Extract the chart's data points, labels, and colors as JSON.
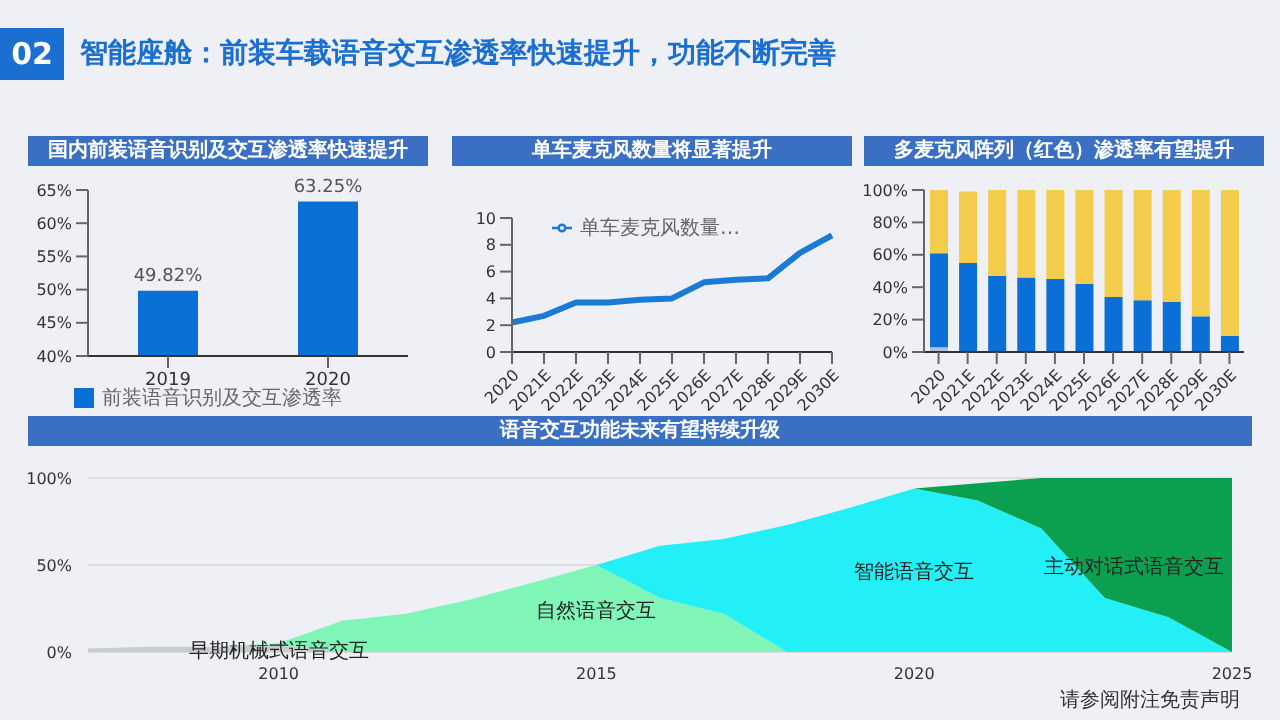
{
  "chart_data": [
    {
      "type": "bar",
      "title": "国内前装语音识别及交互渗透率快速提升",
      "annotations": [
        "02",
        "智能座舱：前装车载语音交互渗透率快速提升，功能不断完善"
      ],
      "categories": [
        "2019",
        "2020"
      ],
      "series": [
        {
          "name": "前装语音识别及交互渗透率",
          "color": "#0a6fd6",
          "values": [
            49.82,
            63.25
          ],
          "value_labels": [
            "49.82%",
            "63.25%"
          ]
        }
      ],
      "ylim": [
        40,
        65
      ],
      "yticks": [
        {
          "value": 40,
          "label": "40%"
        },
        {
          "value": 45,
          "label": "45%"
        },
        {
          "value": 50,
          "label": "50%"
        },
        {
          "value": 55,
          "label": "55%"
        },
        {
          "value": 60,
          "label": "60%"
        },
        {
          "value": 65,
          "label": "65%"
        }
      ],
      "legend": "bottom",
      "grid": false
    },
    {
      "type": "line",
      "title": "单车麦克风数量将显著提升",
      "categories": [
        "2020",
        "2021E",
        "2022E",
        "2023E",
        "2024E",
        "2025E",
        "2026E",
        "2027E",
        "2028E",
        "2029E",
        "2030E"
      ],
      "series": [
        {
          "name": "单车麦克风数量…",
          "color": "#1a7ad6",
          "values": [
            2.2,
            2.7,
            3.7,
            3.7,
            3.9,
            4.0,
            5.2,
            5.4,
            5.5,
            7.4,
            8.7
          ]
        }
      ],
      "ylim": [
        0,
        10
      ],
      "yticks": [
        0,
        2,
        4,
        6,
        8,
        10
      ],
      "legend": "top left",
      "marker": "none",
      "grid": false
    },
    {
      "type": "bar",
      "stacked": true,
      "title": "多麦克风阵列（红色）渗透率有望提升",
      "categories": [
        "2020",
        "2021E",
        "2022E",
        "2023E",
        "2024E",
        "2025E",
        "2026E",
        "2027E",
        "2028E",
        "2029E",
        "2030E"
      ],
      "series": [
        {
          "color": "#a9c3dc",
          "values": [
            3,
            null,
            0,
            0,
            0,
            0,
            0,
            0,
            0,
            0,
            0
          ]
        },
        {
          "color": "#0a6fd6",
          "values": [
            58,
            55,
            47,
            46,
            45,
            42,
            34,
            32,
            31,
            22,
            10
          ]
        },
        {
          "color": "#f2cc4a",
          "values": [
            39,
            44,
            53,
            54,
            55,
            58,
            66,
            68,
            69,
            78,
            90
          ]
        }
      ],
      "ylim": [
        0,
        100
      ],
      "yticks": [
        {
          "value": 0,
          "label": "0%"
        },
        {
          "value": 20,
          "label": "20%"
        },
        {
          "value": 40,
          "label": "40%"
        },
        {
          "value": 60,
          "label": "60%"
        },
        {
          "value": 80,
          "label": "80%"
        },
        {
          "value": 100,
          "label": "100%"
        }
      ],
      "grid": false
    },
    {
      "type": "area",
      "stacked": true,
      "title": "语音交互功能未来有望持续升级",
      "x": [
        2007,
        2008,
        2009,
        2010,
        2011,
        2012,
        2013,
        2014,
        2015,
        2016,
        2017,
        2018,
        2019,
        2020,
        2021,
        2022,
        2023,
        2024,
        2025
      ],
      "series": [
        {
          "name": "早期机械式语音交互",
          "color": "#c8cccc",
          "values": [
            2,
            3,
            3,
            4,
            0,
            0,
            0,
            0,
            0,
            0,
            0,
            0,
            0,
            0,
            0,
            0,
            0,
            0,
            0
          ]
        },
        {
          "name": "自然语音交互",
          "color": "#7ff5b8",
          "values": [
            0,
            0,
            0,
            1,
            18,
            22,
            30,
            40,
            50,
            31,
            22,
            0,
            0,
            0,
            0,
            0,
            0,
            0,
            0
          ]
        },
        {
          "name": "智能语音交互",
          "color": "#22f0f6",
          "values": [
            0,
            0,
            0,
            0,
            0,
            0,
            0,
            0,
            0,
            30,
            43,
            73,
            83,
            94,
            87,
            71,
            31,
            20,
            0
          ]
        },
        {
          "name": "主动对话式语音交互",
          "color": "#0aa050",
          "values": [
            0,
            0,
            0,
            0,
            0,
            0,
            0,
            0,
            0,
            0,
            0,
            0,
            0,
            0,
            10,
            29,
            69,
            80,
            100
          ]
        }
      ],
      "annotations": [
        "请参阅附注免责声明"
      ],
      "xlim": [
        2007,
        2025
      ],
      "xticks": [
        2010,
        2015,
        2020,
        2025
      ],
      "ylim": [
        0,
        100
      ],
      "yticks": [
        {
          "value": 0,
          "label": "0%"
        },
        {
          "value": 50,
          "label": "50%"
        },
        {
          "value": 100,
          "label": "100%"
        }
      ],
      "grid": "y"
    }
  ]
}
